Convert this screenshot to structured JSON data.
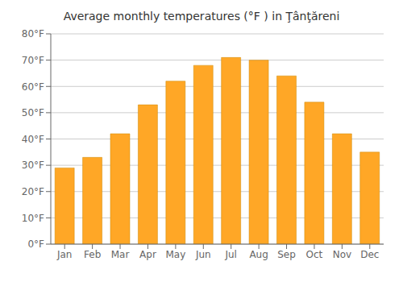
{
  "chart_data": {
    "type": "bar",
    "title": "Average monthly temperatures (°F ) in Ţânţăreni",
    "categories": [
      "Jan",
      "Feb",
      "Mar",
      "Apr",
      "May",
      "Jun",
      "Jul",
      "Aug",
      "Sep",
      "Oct",
      "Nov",
      "Dec"
    ],
    "values": [
      29,
      33,
      42,
      53,
      62,
      68,
      71,
      70,
      64,
      54,
      42,
      35
    ],
    "color": "#FFA726",
    "ylim": [
      0,
      80
    ],
    "yticks": [
      {
        "value": 0,
        "label": "0°F"
      },
      {
        "value": 10,
        "label": "10°F"
      },
      {
        "value": 20,
        "label": "20°F"
      },
      {
        "value": 30,
        "label": "30°F"
      },
      {
        "value": 40,
        "label": "40°F"
      },
      {
        "value": 50,
        "label": "50°F"
      },
      {
        "value": 60,
        "label": "60°F"
      },
      {
        "value": 70,
        "label": "70°F"
      },
      {
        "value": 80,
        "label": "80°F"
      }
    ],
    "grid": true
  }
}
